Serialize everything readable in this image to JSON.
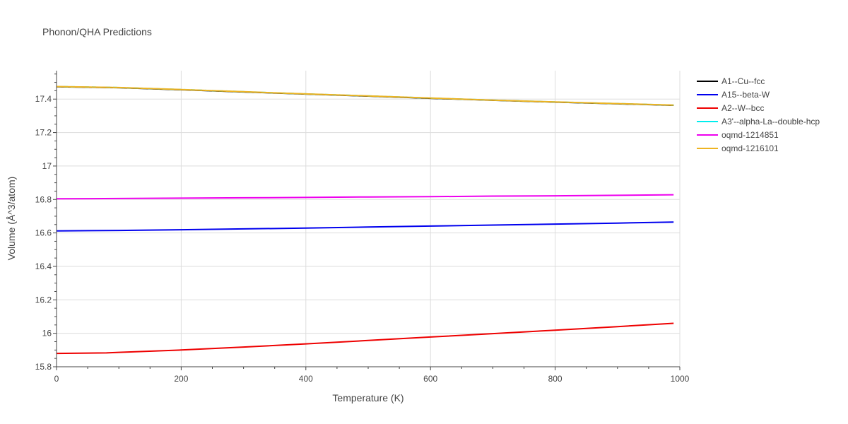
{
  "chart_data": {
    "type": "line",
    "title": "Phonon/QHA Predictions",
    "xlabel": "Temperature (K)",
    "ylabel": "Volume (Å^3/atom)",
    "xlim": [
      0,
      1000
    ],
    "ylim": [
      15.8,
      17.57
    ],
    "x_ticks": [
      0,
      200,
      400,
      600,
      800,
      1000
    ],
    "y_ticks": [
      15.8,
      16,
      16.2,
      16.4,
      16.6,
      16.8,
      17,
      17.2,
      17.4
    ],
    "x_tick_labels": [
      "0",
      "200",
      "400",
      "600",
      "800",
      "1000"
    ],
    "y_tick_labels": [
      "15.8",
      "16",
      "16.2",
      "16.4",
      "16.6",
      "16.8",
      "17",
      "17.2",
      "17.4"
    ],
    "grid": true,
    "legend_position": "right",
    "series": [
      {
        "name": "A1--Cu--fcc",
        "color": "#000000",
        "x": [
          0,
          100,
          200,
          300,
          400,
          500,
          600,
          700,
          800,
          900,
          990
        ],
        "y": [
          17.474,
          17.468,
          17.456,
          17.443,
          17.43,
          17.418,
          17.405,
          17.393,
          17.382,
          17.372,
          17.363
        ]
      },
      {
        "name": "A15--beta-W",
        "color": "#0000ee",
        "x": [
          0,
          100,
          200,
          300,
          400,
          500,
          600,
          700,
          800,
          900,
          990
        ],
        "y": [
          16.612,
          16.615,
          16.619,
          16.624,
          16.629,
          16.635,
          16.641,
          16.647,
          16.653,
          16.659,
          16.665
        ]
      },
      {
        "name": "A2--W--bcc",
        "color": "#ee0000",
        "x": [
          0,
          80,
          100,
          200,
          300,
          400,
          500,
          600,
          700,
          800,
          900,
          990
        ],
        "y": [
          15.88,
          15.883,
          15.886,
          15.9,
          15.918,
          15.937,
          15.957,
          15.978,
          15.998,
          16.019,
          16.04,
          16.06
        ]
      },
      {
        "name": "A3'--alpha-La--double-hcp",
        "color": "#00eeee",
        "x": [
          0,
          100,
          200,
          300,
          400,
          500,
          600,
          700,
          800,
          900,
          990
        ],
        "y": [
          17.475,
          17.469,
          17.457,
          17.444,
          17.431,
          17.419,
          17.406,
          17.394,
          17.383,
          17.373,
          17.364
        ]
      },
      {
        "name": "oqmd-1214851",
        "color": "#ee00ee",
        "x": [
          0,
          100,
          200,
          300,
          400,
          500,
          600,
          700,
          800,
          900,
          990
        ],
        "y": [
          16.804,
          16.806,
          16.808,
          16.81,
          16.812,
          16.815,
          16.817,
          16.82,
          16.822,
          16.825,
          16.828
        ]
      },
      {
        "name": "oqmd-1216101",
        "color": "#eeb422",
        "x": [
          0,
          100,
          200,
          300,
          400,
          500,
          600,
          700,
          800,
          900,
          990
        ],
        "y": [
          17.475,
          17.469,
          17.457,
          17.444,
          17.431,
          17.419,
          17.406,
          17.394,
          17.383,
          17.373,
          17.364
        ]
      }
    ]
  }
}
